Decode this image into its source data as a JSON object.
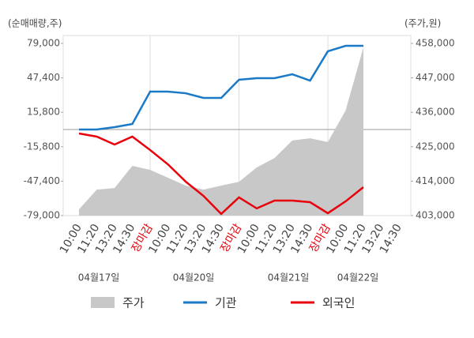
{
  "chart_data": {
    "type": "line",
    "y_label": "(순매매량,주)",
    "y2_label": "(주가,원)",
    "categories": [
      "10:00",
      "11:20",
      "13:20",
      "14:30",
      "장마감",
      "10:00",
      "11:20",
      "13:20",
      "14:30",
      "장마감",
      "10:00",
      "11:20",
      "13:20",
      "14:30",
      "장마감",
      "10:00",
      "11:20",
      "13:20",
      "14:30"
    ],
    "category_label_colors": [
      "#444",
      "#444",
      "#444",
      "#444",
      "#e8000b",
      "#444",
      "#444",
      "#444",
      "#444",
      "#e8000b",
      "#444",
      "#444",
      "#444",
      "#444",
      "#e8000b",
      "#444",
      "#444",
      "#444",
      "#444"
    ],
    "date_labels": [
      "04월17일",
      "04월20일",
      "04월21일",
      "04월22일"
    ],
    "ylim": [
      -79000,
      79000
    ],
    "yticks": [
      {
        "value": 79000,
        "label": "79,000"
      },
      {
        "value": 47400,
        "label": "47,400"
      },
      {
        "value": 15800,
        "label": "15,800"
      },
      {
        "value": -15800,
        "label": "-15,800"
      },
      {
        "value": -47400,
        "label": "-47,400"
      },
      {
        "value": -79000,
        "label": "-79,000"
      }
    ],
    "y2lim": [
      403000,
      458000
    ],
    "y2ticks": [
      {
        "value": 458000,
        "label": "458,000"
      },
      {
        "value": 447000,
        "label": "447,000"
      },
      {
        "value": 436000,
        "label": "436,000"
      },
      {
        "value": 425000,
        "label": "425,000"
      },
      {
        "value": 414000,
        "label": "414,000"
      },
      {
        "value": 403000,
        "label": "403,000"
      }
    ],
    "series": [
      {
        "name": "주가",
        "type": "area",
        "axis": "y2",
        "color": "#c8c8c8",
        "values": [
          405000,
          411300,
          411800,
          418900,
          417600,
          415100,
          412600,
          411300,
          412600,
          413800,
          418400,
          421400,
          427000,
          427700,
          426500,
          436600,
          456700,
          null,
          null
        ]
      },
      {
        "name": "기관",
        "type": "line",
        "color": "#1a7ac8",
        "values": [
          0,
          0,
          2200,
          5100,
          34800,
          34800,
          33300,
          29000,
          29000,
          45700,
          47100,
          47100,
          50700,
          44900,
          71800,
          76800,
          76800,
          null,
          null
        ]
      },
      {
        "name": "외국인",
        "type": "line",
        "color": "#e8000b",
        "values": [
          -3600,
          -6500,
          -13800,
          -6500,
          -18800,
          -31900,
          -47800,
          -60900,
          -77500,
          -62300,
          -72400,
          -65200,
          -65200,
          -66700,
          -76800,
          -65900,
          -52900,
          null,
          null
        ]
      }
    ]
  }
}
